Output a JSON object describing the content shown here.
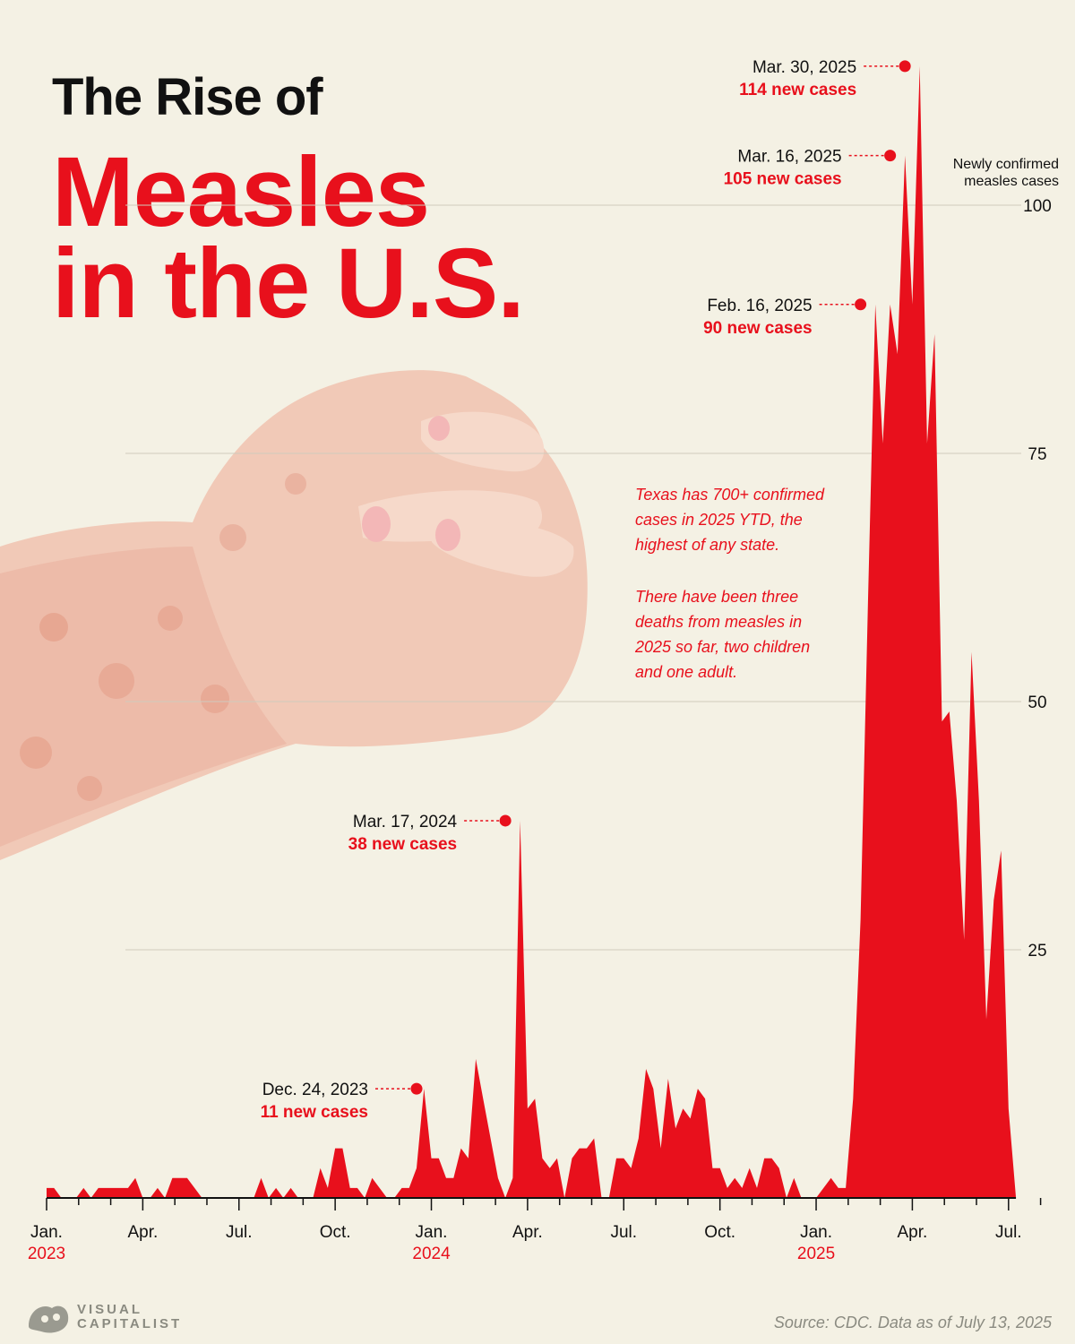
{
  "title": {
    "line1": "The Rise of",
    "line2": "Measles",
    "line3": "in the U.S."
  },
  "notes": [
    "Texas has 700+ confirmed cases in 2025 YTD, the highest of any state.",
    "There have been three deaths from measles in 2025 so far, two children and one adult."
  ],
  "source": "Source: CDC. Data as of July 13, 2025",
  "brand": {
    "line1": "VISUAL",
    "line2": "CAPITALIST"
  },
  "colors": {
    "accent": "#e8101c",
    "background": "#f4f1e4",
    "gridline": "#cfcbbd",
    "muted": "#8a8a80"
  },
  "chart_data": {
    "type": "area",
    "x_unit": "week",
    "y_title": "Newly confirmed measles cases",
    "ylim": [
      0,
      115
    ],
    "y_ticks": [
      25,
      50,
      75,
      100
    ],
    "grid": true,
    "x_ticks": [
      {
        "label": "Jan.",
        "year": "2023",
        "week": 0
      },
      {
        "label": "Apr.",
        "week": 13
      },
      {
        "label": "Jul.",
        "week": 26
      },
      {
        "label": "Oct.",
        "week": 39
      },
      {
        "label": "Jan.",
        "year": "2024",
        "week": 52
      },
      {
        "label": "Apr.",
        "week": 65
      },
      {
        "label": "Jul.",
        "week": 78
      },
      {
        "label": "Oct.",
        "week": 91
      },
      {
        "label": "Jan.",
        "year": "2025",
        "week": 104
      },
      {
        "label": "Apr.",
        "week": 117
      },
      {
        "label": "Jul.",
        "week": 130
      }
    ],
    "series": [
      {
        "weekly_values": [
          1,
          1,
          0,
          0,
          0,
          1,
          0,
          1,
          1,
          1,
          1,
          1,
          2,
          0,
          0,
          1,
          0,
          2,
          2,
          2,
          1,
          0,
          0,
          0,
          0,
          0,
          0,
          0,
          0,
          2,
          0,
          1,
          0,
          1,
          0,
          0,
          0,
          3,
          1,
          5,
          5,
          1,
          1,
          0,
          2,
          1,
          0,
          0,
          1,
          1,
          3,
          11,
          4,
          4,
          2,
          2,
          5,
          4,
          14,
          10,
          6,
          2,
          0,
          2,
          38,
          9,
          10,
          4,
          3,
          4,
          0,
          4,
          5,
          5,
          6,
          0,
          0,
          4,
          4,
          3,
          6,
          13,
          11,
          5,
          12,
          7,
          9,
          8,
          11,
          10,
          3,
          3,
          1,
          2,
          1,
          3,
          1,
          4,
          4,
          3,
          0,
          2,
          0,
          0,
          0,
          1,
          2,
          1,
          1,
          10,
          28,
          60,
          90,
          76,
          90,
          85,
          105,
          90,
          114,
          76,
          87,
          48,
          49,
          40,
          26,
          55,
          40,
          18,
          30,
          35,
          9,
          0
        ]
      }
    ],
    "annotations": [
      {
        "date": "Mar. 30, 2025",
        "text": "114 new cases",
        "week": 116,
        "value": 114
      },
      {
        "date": "Mar. 16, 2025",
        "text": "105 new cases",
        "week": 114,
        "value": 105
      },
      {
        "date": "Feb. 16, 2025",
        "text": "90 new cases",
        "week": 110,
        "value": 90
      },
      {
        "date": "Mar. 17, 2024",
        "text": "38 new cases",
        "week": 62,
        "value": 38
      },
      {
        "date": "Dec. 24, 2023",
        "text": "11 new cases",
        "week": 50,
        "value": 11
      }
    ]
  }
}
